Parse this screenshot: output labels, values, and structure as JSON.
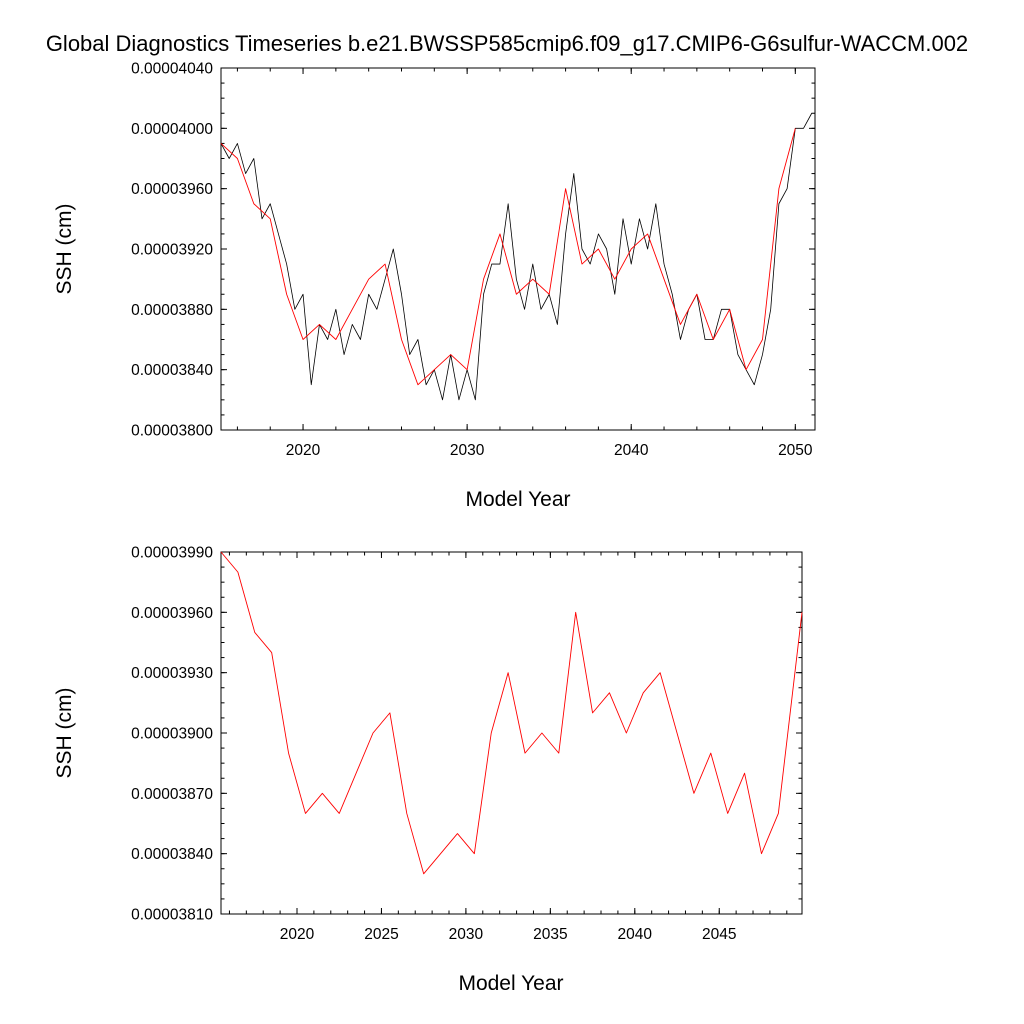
{
  "figure": {
    "title": "Global Diagnostics Timeseries b.e21.BWSSP585cmip6.f09_g17.CMIP6-G6sulfur-WACCM.002"
  },
  "colors": {
    "monthly_line": "#000000",
    "annual_line": "#ff0000",
    "axes": "#000000"
  },
  "chart_data": [
    {
      "type": "line",
      "title": "",
      "xlabel": "Model Year",
      "ylabel": "SSH (cm)",
      "xlim": [
        2015,
        2051.2
      ],
      "ylim": [
        3.8e-05,
        4.04e-05
      ],
      "xticks": [
        2020,
        2030,
        2040,
        2050
      ],
      "xtick_labels": [
        "2020",
        "2030",
        "2040",
        "2050"
      ],
      "yticks": [
        3.8e-05,
        3.84e-05,
        3.88e-05,
        3.92e-05,
        3.96e-05,
        4e-05,
        4.04e-05
      ],
      "ytick_labels": [
        "0.00003800",
        "0.00003840",
        "0.00003880",
        "0.00003920",
        "0.00003960",
        "0.00004000",
        "0.00004040"
      ],
      "grid": false,
      "series": [
        {
          "kind": "monthly",
          "x": [
            2015.0,
            2015.5,
            2016.0,
            2016.5,
            2017.0,
            2017.5,
            2018.0,
            2018.5,
            2019.0,
            2019.5,
            2020.0,
            2020.5,
            2021.0,
            2021.5,
            2022.0,
            2022.5,
            2023.0,
            2023.5,
            2024.0,
            2024.5,
            2025.0,
            2025.5,
            2026.0,
            2026.5,
            2027.0,
            2027.5,
            2028.0,
            2028.5,
            2029.0,
            2029.5,
            2030.0,
            2030.5,
            2031.0,
            2031.5,
            2032.0,
            2032.5,
            2033.0,
            2033.5,
            2034.0,
            2034.5,
            2035.0,
            2035.5,
            2036.0,
            2036.5,
            2037.0,
            2037.5,
            2038.0,
            2038.5,
            2039.0,
            2039.5,
            2040.0,
            2040.5,
            2041.0,
            2041.5,
            2042.0,
            2042.5,
            2043.0,
            2043.5,
            2044.0,
            2044.5,
            2045.0,
            2045.5,
            2046.0,
            2046.5,
            2047.0,
            2047.5,
            2048.0,
            2048.5,
            2049.0,
            2049.5,
            2050.0,
            2050.5,
            2051.0
          ],
          "y": [
            3.99e-05,
            3.98e-05,
            3.99e-05,
            3.97e-05,
            3.98e-05,
            3.94e-05,
            3.95e-05,
            3.93e-05,
            3.91e-05,
            3.88e-05,
            3.89e-05,
            3.83e-05,
            3.87e-05,
            3.86e-05,
            3.88e-05,
            3.85e-05,
            3.87e-05,
            3.86e-05,
            3.89e-05,
            3.88e-05,
            3.9e-05,
            3.92e-05,
            3.89e-05,
            3.85e-05,
            3.86e-05,
            3.83e-05,
            3.84e-05,
            3.82e-05,
            3.85e-05,
            3.82e-05,
            3.84e-05,
            3.82e-05,
            3.89e-05,
            3.91e-05,
            3.91e-05,
            3.95e-05,
            3.9e-05,
            3.88e-05,
            3.91e-05,
            3.88e-05,
            3.89e-05,
            3.87e-05,
            3.93e-05,
            3.97e-05,
            3.92e-05,
            3.91e-05,
            3.93e-05,
            3.92e-05,
            3.89e-05,
            3.94e-05,
            3.91e-05,
            3.94e-05,
            3.92e-05,
            3.95e-05,
            3.91e-05,
            3.89e-05,
            3.86e-05,
            3.88e-05,
            3.89e-05,
            3.86e-05,
            3.86e-05,
            3.88e-05,
            3.88e-05,
            3.85e-05,
            3.84e-05,
            3.83e-05,
            3.85e-05,
            3.88e-05,
            3.95e-05,
            3.96e-05,
            4e-05,
            4e-05,
            4.01e-05
          ]
        },
        {
          "kind": "annual",
          "x": [
            2015.0,
            2016.0,
            2017.0,
            2018.0,
            2019.0,
            2020.0,
            2021.0,
            2022.0,
            2023.0,
            2024.0,
            2025.0,
            2026.0,
            2027.0,
            2028.0,
            2029.0,
            2030.0,
            2031.0,
            2032.0,
            2033.0,
            2034.0,
            2035.0,
            2036.0,
            2037.0,
            2038.0,
            2039.0,
            2040.0,
            2041.0,
            2042.0,
            2043.0,
            2044.0,
            2045.0,
            2046.0,
            2047.0,
            2048.0,
            2049.0,
            2050.0
          ],
          "y": [
            3.99e-05,
            3.98e-05,
            3.95e-05,
            3.94e-05,
            3.89e-05,
            3.86e-05,
            3.87e-05,
            3.86e-05,
            3.88e-05,
            3.9e-05,
            3.91e-05,
            3.86e-05,
            3.83e-05,
            3.84e-05,
            3.85e-05,
            3.84e-05,
            3.9e-05,
            3.93e-05,
            3.89e-05,
            3.9e-05,
            3.89e-05,
            3.96e-05,
            3.91e-05,
            3.92e-05,
            3.9e-05,
            3.92e-05,
            3.93e-05,
            3.9e-05,
            3.87e-05,
            3.89e-05,
            3.86e-05,
            3.88e-05,
            3.84e-05,
            3.86e-05,
            3.96e-05,
            4e-05
          ]
        }
      ]
    },
    {
      "type": "line",
      "title": "",
      "xlabel": "Model Year",
      "ylabel": "SSH (cm)",
      "xlim": [
        2015.5,
        2049.9
      ],
      "ylim": [
        3.81e-05,
        3.99e-05
      ],
      "xticks": [
        2020,
        2025,
        2030,
        2035,
        2040,
        2045
      ],
      "xtick_labels": [
        "2020",
        "2025",
        "2030",
        "2035",
        "2040",
        "2045"
      ],
      "yticks": [
        3.81e-05,
        3.84e-05,
        3.87e-05,
        3.9e-05,
        3.93e-05,
        3.96e-05,
        3.99e-05
      ],
      "ytick_labels": [
        "0.00003810",
        "0.00003840",
        "0.00003870",
        "0.00003900",
        "0.00003930",
        "0.00003960",
        "0.00003990"
      ],
      "grid": false,
      "series": [
        {
          "kind": "annual",
          "x": [
            2015.5,
            2016.5,
            2017.5,
            2018.5,
            2019.5,
            2020.5,
            2021.5,
            2022.5,
            2023.5,
            2024.5,
            2025.5,
            2026.5,
            2027.5,
            2028.5,
            2029.5,
            2030.5,
            2031.5,
            2032.5,
            2033.5,
            2034.5,
            2035.5,
            2036.5,
            2037.5,
            2038.5,
            2039.5,
            2040.5,
            2041.5,
            2042.5,
            2043.5,
            2044.5,
            2045.5,
            2046.5,
            2047.5,
            2048.5,
            2049.9
          ],
          "y": [
            3.99e-05,
            3.98e-05,
            3.95e-05,
            3.94e-05,
            3.89e-05,
            3.86e-05,
            3.87e-05,
            3.86e-05,
            3.88e-05,
            3.9e-05,
            3.91e-05,
            3.86e-05,
            3.83e-05,
            3.84e-05,
            3.85e-05,
            3.84e-05,
            3.9e-05,
            3.93e-05,
            3.89e-05,
            3.9e-05,
            3.89e-05,
            3.96e-05,
            3.91e-05,
            3.92e-05,
            3.9e-05,
            3.92e-05,
            3.93e-05,
            3.9e-05,
            3.87e-05,
            3.89e-05,
            3.86e-05,
            3.88e-05,
            3.84e-05,
            3.86e-05,
            3.96e-05
          ]
        }
      ]
    }
  ]
}
